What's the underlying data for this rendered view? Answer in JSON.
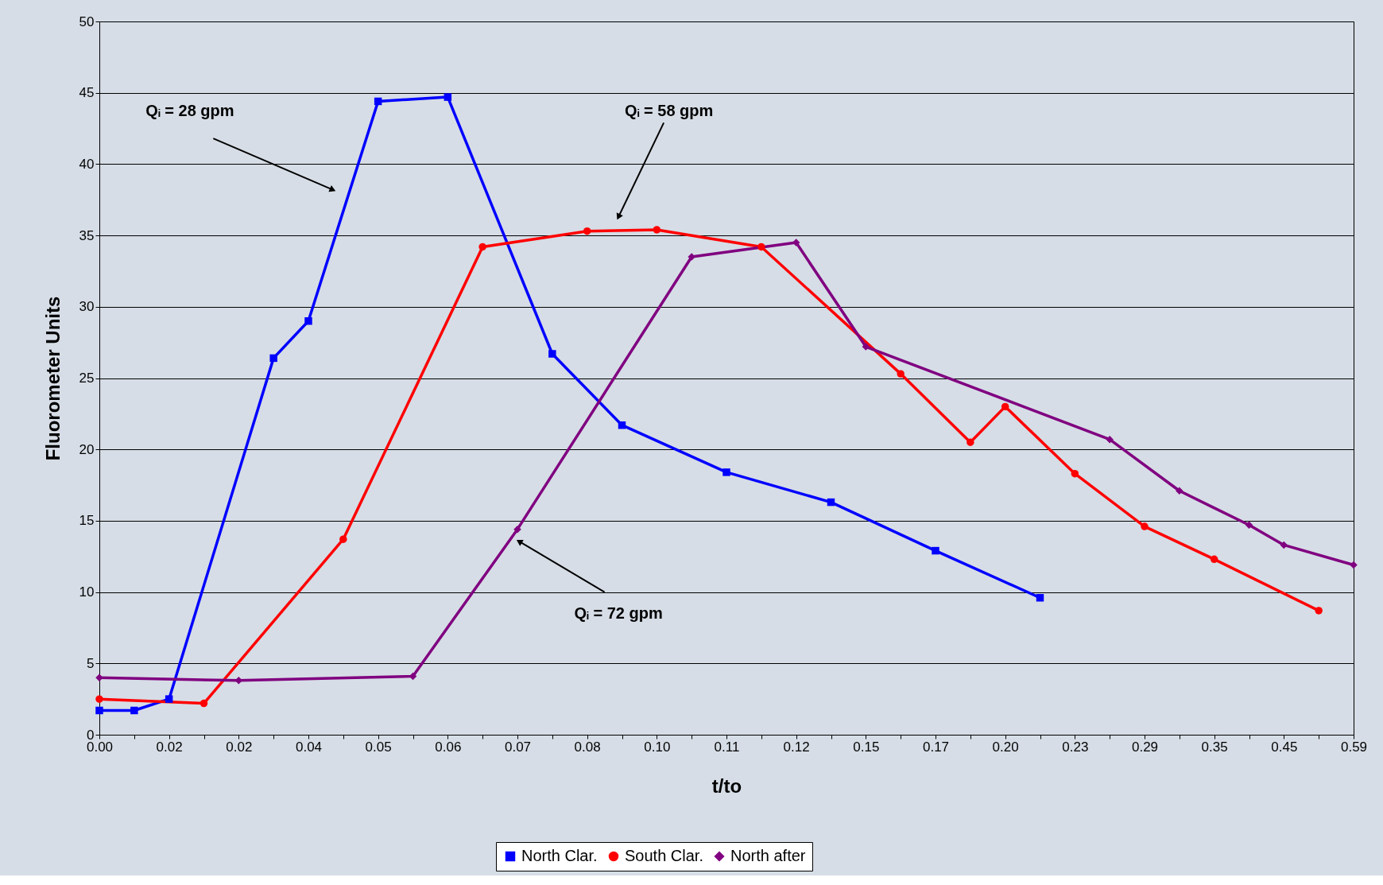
{
  "chart_data": {
    "type": "line",
    "xlabel": "t/to",
    "ylabel": "Fluorometer Units",
    "categories": [
      "0.00",
      null,
      "0.02",
      null,
      "0.02",
      null,
      "0.04",
      null,
      "0.05",
      null,
      "0.06",
      null,
      "0.07",
      null,
      "0.08",
      null,
      "0.10",
      null,
      "0.11",
      null,
      "0.12",
      null,
      "0.15",
      null,
      "0.17",
      null,
      "0.20",
      null,
      "0.23",
      null,
      "0.29",
      null,
      "0.35",
      null,
      "0.45",
      null,
      "0.59"
    ],
    "series": [
      {
        "name": "North Clar.",
        "color": "#0000ff",
        "marker": "square",
        "values": [
          1.7,
          1.7,
          2.5,
          null,
          null,
          26.4,
          29.0,
          null,
          44.4,
          null,
          44.7,
          null,
          null,
          26.7,
          null,
          21.7,
          null,
          null,
          18.4,
          null,
          null,
          16.3,
          null,
          null,
          12.9,
          null,
          null,
          9.6,
          null,
          null,
          null,
          null,
          null,
          null,
          null,
          null,
          null
        ]
      },
      {
        "name": "South Clar.",
        "color": "#ff0000",
        "marker": "circle",
        "values": [
          2.5,
          null,
          null,
          2.2,
          null,
          null,
          null,
          13.7,
          null,
          null,
          null,
          34.2,
          null,
          null,
          35.3,
          null,
          35.4,
          null,
          null,
          34.2,
          null,
          null,
          null,
          25.3,
          null,
          20.5,
          23.0,
          null,
          18.3,
          null,
          14.6,
          null,
          12.3,
          null,
          null,
          8.7,
          null
        ]
      },
      {
        "name": "North after",
        "color": "#800080",
        "marker": "diamond",
        "values": [
          4.0,
          null,
          null,
          null,
          3.8,
          null,
          null,
          null,
          null,
          4.1,
          null,
          null,
          14.4,
          null,
          null,
          null,
          null,
          33.5,
          null,
          null,
          34.5,
          null,
          27.2,
          null,
          null,
          null,
          null,
          null,
          null,
          20.7,
          null,
          17.1,
          null,
          14.7,
          13.3,
          null,
          11.9
        ]
      }
    ],
    "ylim": [
      0,
      50
    ],
    "yticks": [
      0,
      5,
      10,
      15,
      20,
      25,
      30,
      35,
      40,
      45,
      50
    ],
    "grid": "y",
    "legend": "bottom",
    "line_style": "solid",
    "annotations": [
      "Qᵢ = 28 gpm",
      "Qᵢ = 58 gpm",
      "Qᵢ = 72 gpm"
    ]
  }
}
